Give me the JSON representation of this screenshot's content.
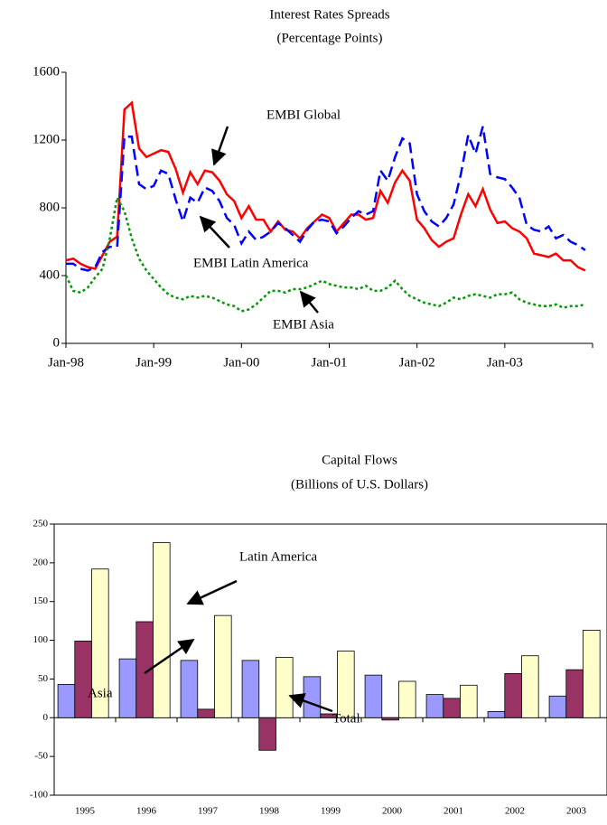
{
  "chart_data": [
    {
      "type": "line",
      "title": "Interest Rates Spreads",
      "subtitle": "(Percentage Points)",
      "categories": [
        "Jan-98",
        null,
        null,
        null,
        null,
        null,
        null,
        null,
        null,
        null,
        null,
        null,
        "Jan-99",
        null,
        null,
        null,
        null,
        null,
        null,
        null,
        null,
        null,
        null,
        null,
        "Jan-00",
        null,
        null,
        null,
        null,
        null,
        null,
        null,
        null,
        null,
        null,
        null,
        "Jan-01",
        null,
        null,
        null,
        null,
        null,
        null,
        null,
        null,
        null,
        null,
        null,
        "Jan-02",
        null,
        null,
        null,
        null,
        null,
        null,
        null,
        null,
        null,
        null,
        null,
        "Jan-03",
        null,
        null,
        null,
        null,
        null,
        null,
        null,
        null,
        null,
        null,
        null
      ],
      "series": [
        {
          "name": "EMBI Global",
          "color": "#ff0000",
          "style": "solid",
          "values": [
            490,
            500,
            470,
            450,
            440,
            520,
            600,
            630,
            1380,
            1420,
            1150,
            1100,
            1120,
            1140,
            1130,
            1030,
            890,
            1010,
            940,
            1020,
            1010,
            960,
            880,
            840,
            740,
            810,
            730,
            730,
            660,
            720,
            670,
            660,
            620,
            680,
            720,
            760,
            740,
            660,
            710,
            760,
            760,
            730,
            740,
            900,
            830,
            950,
            1020,
            960,
            730,
            680,
            610,
            570,
            600,
            620,
            760,
            880,
            810,
            910,
            790,
            710,
            720,
            680,
            660,
            620,
            530,
            520,
            510,
            530,
            490,
            490,
            450,
            430
          ]
        },
        {
          "name": "EMBI Latin America",
          "color": "#0000ff",
          "style": "dashed",
          "values": [
            470,
            470,
            440,
            430,
            450,
            540,
            570,
            570,
            1220,
            1220,
            940,
            910,
            930,
            1020,
            1000,
            850,
            720,
            860,
            830,
            920,
            900,
            840,
            740,
            700,
            590,
            660,
            610,
            630,
            660,
            710,
            680,
            640,
            600,
            670,
            720,
            730,
            720,
            650,
            690,
            740,
            780,
            760,
            780,
            1020,
            960,
            1100,
            1210,
            1180,
            880,
            780,
            720,
            690,
            740,
            820,
            1000,
            1230,
            1120,
            1280,
            1000,
            980,
            970,
            920,
            860,
            700,
            670,
            660,
            690,
            620,
            640,
            600,
            580,
            550
          ]
        },
        {
          "name": "EMBI Asia",
          "color": "#009900",
          "style": "dotted",
          "values": [
            400,
            310,
            300,
            330,
            390,
            440,
            620,
            860,
            780,
            620,
            500,
            430,
            380,
            330,
            290,
            270,
            260,
            280,
            270,
            280,
            270,
            250,
            230,
            220,
            190,
            200,
            230,
            270,
            310,
            310,
            300,
            320,
            320,
            330,
            350,
            370,
            350,
            340,
            330,
            330,
            320,
            340,
            310,
            310,
            330,
            370,
            320,
            280,
            260,
            240,
            230,
            220,
            240,
            270,
            260,
            280,
            290,
            280,
            270,
            290,
            290,
            300,
            260,
            240,
            230,
            220,
            220,
            230,
            210,
            220,
            220,
            230
          ]
        }
      ],
      "ylim": [
        0,
        1600
      ],
      "yticks": [
        0,
        400,
        800,
        1200,
        1600
      ]
    },
    {
      "type": "bar",
      "title": "Capital Flows",
      "subtitle": "(Billions of U.S. Dollars)",
      "categories": [
        "1995",
        "1996",
        "1997",
        "1998",
        "1999",
        "2000",
        "2001",
        "2002",
        "2003"
      ],
      "series": [
        {
          "name": "Latin America",
          "color": "#9999ff",
          "values": [
            43,
            76,
            74,
            74,
            53,
            55,
            30,
            8,
            28
          ]
        },
        {
          "name": "Asia",
          "color": "#993366",
          "values": [
            99,
            124,
            11,
            -42,
            5,
            -3,
            25,
            57,
            62
          ]
        },
        {
          "name": "Total",
          "color": "#ffffcc",
          "values": [
            192,
            226,
            132,
            78,
            86,
            47,
            42,
            80,
            113
          ]
        }
      ],
      "ylim": [
        -100,
        250
      ],
      "yticks": [
        -100,
        -50,
        0,
        50,
        100,
        150,
        200,
        250
      ]
    }
  ]
}
